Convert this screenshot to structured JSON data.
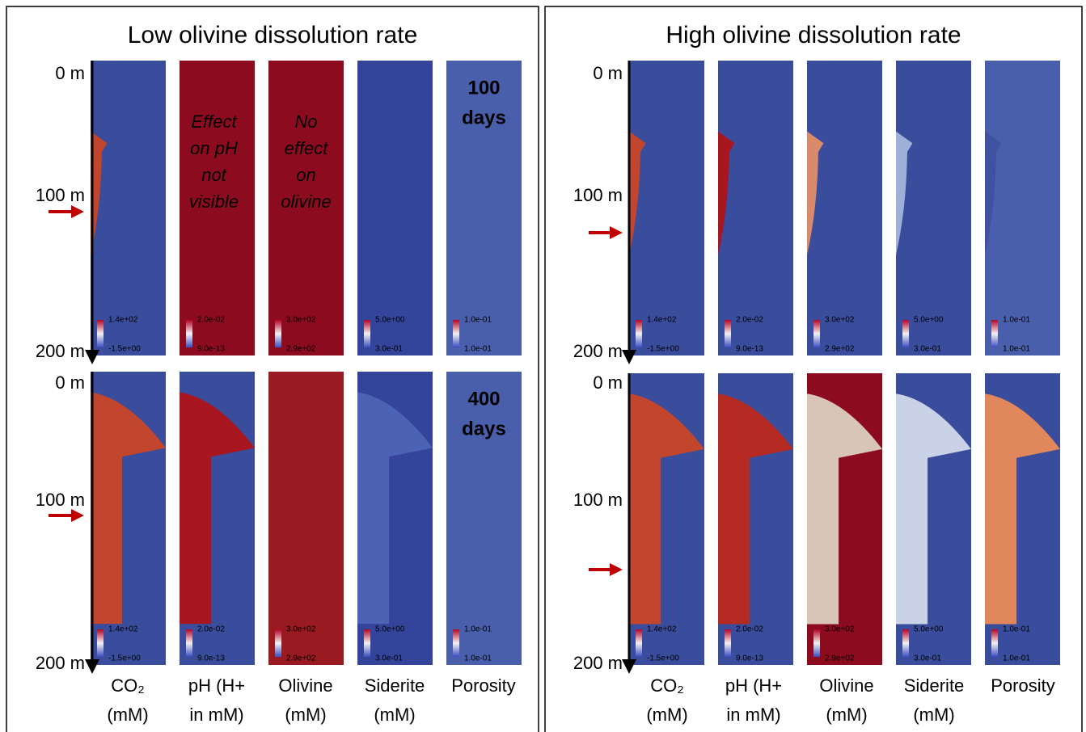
{
  "panels": [
    {
      "title": "Low olivine dissolution rate",
      "depth_labels": [
        "0 m",
        "100 m",
        "200 m"
      ],
      "time_labels": [
        [
          "100",
          "days"
        ],
        [
          "400",
          "days"
        ]
      ],
      "annotations": [
        [
          "Effect",
          "on pH",
          "not",
          "visible"
        ],
        [
          "No",
          "effect",
          "on",
          "olivine"
        ]
      ],
      "columns": [
        [
          "CO₂",
          "(mM)"
        ],
        [
          "pH (H+",
          "in mM)"
        ],
        [
          "Olivine",
          "(mM)"
        ],
        [
          "Siderite",
          "(mM)"
        ],
        [
          "Porosity"
        ]
      ],
      "colorbars": [
        [
          "1.4e+02",
          "-1.5e+00"
        ],
        [
          "2.0e-02",
          "9.0e-13"
        ],
        [
          "3.0e+02",
          "2.9e+02"
        ],
        [
          "5.0e+00",
          "3.0e-01"
        ],
        [
          "1.0e-01",
          "1.0e-01"
        ]
      ]
    },
    {
      "title": "High olivine dissolution rate",
      "depth_labels": [
        "0 m",
        "100 m",
        "200 m"
      ],
      "columns": [
        [
          "CO₂",
          "(mM)"
        ],
        [
          "pH (H+",
          "in mM)"
        ],
        [
          "Olivine",
          "(mM)"
        ],
        [
          "Siderite",
          "(mM)"
        ],
        [
          "Porosity"
        ]
      ],
      "colorbars": [
        [
          "1.4e+02",
          "-1.5e+00"
        ],
        [
          "2.0e-02",
          "9.0e-13"
        ],
        [
          "3.0e+02",
          "2.9e+02"
        ],
        [
          "5.0e+00",
          "3.0e-01"
        ],
        [
          "1.0e-01",
          "1.0e-01"
        ]
      ]
    }
  ]
}
